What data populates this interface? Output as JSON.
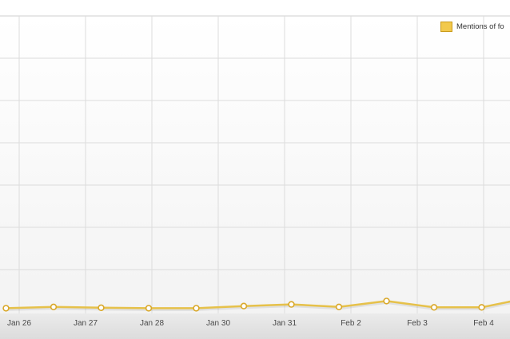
{
  "colors": {
    "series_line": "#e6c14a",
    "series_marker_fill": "#ffffff",
    "series_marker_stroke": "#d9a82a",
    "legend_swatch": "#f2c94c",
    "grid": "#dcdcdc",
    "axis_band": "#e2e2e2"
  },
  "legend": {
    "label": "Mentions of fo"
  },
  "chart_data": {
    "type": "line",
    "title": "",
    "xlabel": "",
    "ylabel": "",
    "grid": true,
    "legend_placement": "top-right",
    "ylim": [
      0,
      7
    ],
    "tick_labels": [
      "Jan 26",
      "Jan 27",
      "Jan 28",
      "Jan 30",
      "Jan 31",
      "Feb 2",
      "Feb 3",
      "Feb 4"
    ],
    "series": [
      {
        "name": "Mentions of fo",
        "x": [
          0,
          1,
          2,
          3,
          4,
          5,
          6,
          7,
          8,
          9,
          10,
          11
        ],
        "values": [
          0.05,
          0.08,
          0.06,
          0.05,
          0.05,
          0.1,
          0.14,
          0.08,
          0.22,
          0.07,
          0.07,
          0.3
        ]
      }
    ]
  }
}
